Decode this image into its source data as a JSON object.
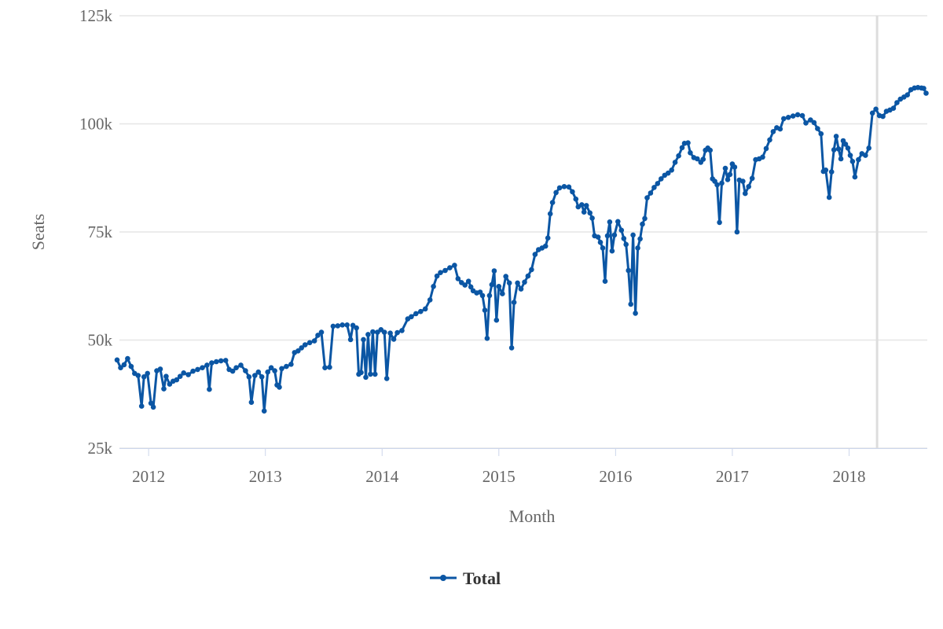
{
  "chart_data": {
    "type": "line",
    "title": "",
    "xlabel": "Month",
    "ylabel": "Seats",
    "xlim": [
      2011.75,
      2018.67
    ],
    "ylim": [
      25000,
      125000
    ],
    "yticks": [
      25000,
      50000,
      75000,
      100000,
      125000
    ],
    "ytick_labels": [
      "25k",
      "50k",
      "75k",
      "100k",
      "125k"
    ],
    "xticks": [
      2012,
      2013,
      2014,
      2015,
      2016,
      2017,
      2018
    ],
    "xtick_labels": [
      "2012",
      "2013",
      "2014",
      "2015",
      "2016",
      "2017",
      "2018"
    ],
    "grid": "horizontal",
    "legend_position": "bottom-center",
    "highlight_x": 2018.24,
    "colors": {
      "series": "#0b56a4",
      "grid": "#e6e6e6",
      "highlight": "#dddddd",
      "axis": "#ccd6eb"
    },
    "series": [
      {
        "name": "Total",
        "points": [
          [
            2011.73,
            45400
          ],
          [
            2011.76,
            43600
          ],
          [
            2011.79,
            44300
          ],
          [
            2011.82,
            45700
          ],
          [
            2011.85,
            43900
          ],
          [
            2011.88,
            42300
          ],
          [
            2011.91,
            41800
          ],
          [
            2011.94,
            34700
          ],
          [
            2011.96,
            41500
          ],
          [
            2011.99,
            42300
          ],
          [
            2012.02,
            35400
          ],
          [
            2012.04,
            34500
          ],
          [
            2012.07,
            42900
          ],
          [
            2012.1,
            43300
          ],
          [
            2012.13,
            38700
          ],
          [
            2012.15,
            41600
          ],
          [
            2012.18,
            39800
          ],
          [
            2012.21,
            40500
          ],
          [
            2012.24,
            40800
          ],
          [
            2012.27,
            41600
          ],
          [
            2012.3,
            42400
          ],
          [
            2012.34,
            42000
          ],
          [
            2012.38,
            42800
          ],
          [
            2012.42,
            43200
          ],
          [
            2012.46,
            43600
          ],
          [
            2012.5,
            44200
          ],
          [
            2012.52,
            38600
          ],
          [
            2012.54,
            44700
          ],
          [
            2012.58,
            45000
          ],
          [
            2012.62,
            45200
          ],
          [
            2012.66,
            45300
          ],
          [
            2012.69,
            43200
          ],
          [
            2012.72,
            42800
          ],
          [
            2012.75,
            43600
          ],
          [
            2012.79,
            44200
          ],
          [
            2012.83,
            42900
          ],
          [
            2012.86,
            41500
          ],
          [
            2012.88,
            35600
          ],
          [
            2012.91,
            41800
          ],
          [
            2012.94,
            42600
          ],
          [
            2012.97,
            41500
          ],
          [
            2012.99,
            33600
          ],
          [
            2013.02,
            42600
          ],
          [
            2013.05,
            43600
          ],
          [
            2013.08,
            42900
          ],
          [
            2013.1,
            39600
          ],
          [
            2013.12,
            39100
          ],
          [
            2013.14,
            43400
          ],
          [
            2013.18,
            43900
          ],
          [
            2013.22,
            44400
          ],
          [
            2013.25,
            47100
          ],
          [
            2013.28,
            47500
          ],
          [
            2013.31,
            48200
          ],
          [
            2013.34,
            48900
          ],
          [
            2013.38,
            49400
          ],
          [
            2013.42,
            49800
          ],
          [
            2013.45,
            51100
          ],
          [
            2013.48,
            51800
          ],
          [
            2013.51,
            43600
          ],
          [
            2013.55,
            43700
          ],
          [
            2013.58,
            53200
          ],
          [
            2013.62,
            53300
          ],
          [
            2013.66,
            53500
          ],
          [
            2013.7,
            53500
          ],
          [
            2013.73,
            50100
          ],
          [
            2013.75,
            53400
          ],
          [
            2013.78,
            52800
          ],
          [
            2013.8,
            42100
          ],
          [
            2013.82,
            42500
          ],
          [
            2013.84,
            50100
          ],
          [
            2013.86,
            41400
          ],
          [
            2013.88,
            51300
          ],
          [
            2013.9,
            42100
          ],
          [
            2013.92,
            51900
          ],
          [
            2013.94,
            42100
          ],
          [
            2013.96,
            51800
          ],
          [
            2013.99,
            52400
          ],
          [
            2014.02,
            51800
          ],
          [
            2014.04,
            41100
          ],
          [
            2014.07,
            51600
          ],
          [
            2014.1,
            50200
          ],
          [
            2014.13,
            51700
          ],
          [
            2014.17,
            52200
          ],
          [
            2014.22,
            54900
          ],
          [
            2014.25,
            55400
          ],
          [
            2014.29,
            56100
          ],
          [
            2014.33,
            56600
          ],
          [
            2014.37,
            57200
          ],
          [
            2014.41,
            59300
          ],
          [
            2014.44,
            62400
          ],
          [
            2014.47,
            64800
          ],
          [
            2014.5,
            65600
          ],
          [
            2014.54,
            66100
          ],
          [
            2014.58,
            66700
          ],
          [
            2014.62,
            67300
          ],
          [
            2014.65,
            64200
          ],
          [
            2014.68,
            63300
          ],
          [
            2014.71,
            62700
          ],
          [
            2014.74,
            63600
          ],
          [
            2014.76,
            62300
          ],
          [
            2014.78,
            61400
          ],
          [
            2014.81,
            60900
          ],
          [
            2014.84,
            61100
          ],
          [
            2014.86,
            60300
          ],
          [
            2014.88,
            56900
          ],
          [
            2014.9,
            50400
          ],
          [
            2014.92,
            60300
          ],
          [
            2014.94,
            62800
          ],
          [
            2014.96,
            66000
          ],
          [
            2014.98,
            54600
          ],
          [
            2015.0,
            62400
          ],
          [
            2015.03,
            60700
          ],
          [
            2015.06,
            64700
          ],
          [
            2015.09,
            63200
          ],
          [
            2015.11,
            48200
          ],
          [
            2015.13,
            58700
          ],
          [
            2015.16,
            63200
          ],
          [
            2015.19,
            61800
          ],
          [
            2015.22,
            63400
          ],
          [
            2015.25,
            64800
          ],
          [
            2015.28,
            66300
          ],
          [
            2015.31,
            69800
          ],
          [
            2015.34,
            70900
          ],
          [
            2015.37,
            71300
          ],
          [
            2015.4,
            71700
          ],
          [
            2015.42,
            73600
          ],
          [
            2015.44,
            79200
          ],
          [
            2015.46,
            81800
          ],
          [
            2015.49,
            84100
          ],
          [
            2015.52,
            85200
          ],
          [
            2015.56,
            85500
          ],
          [
            2015.6,
            85400
          ],
          [
            2015.63,
            84300
          ],
          [
            2015.66,
            82600
          ],
          [
            2015.68,
            80800
          ],
          [
            2015.71,
            81300
          ],
          [
            2015.73,
            79600
          ],
          [
            2015.75,
            81100
          ],
          [
            2015.78,
            79400
          ],
          [
            2015.8,
            78200
          ],
          [
            2015.82,
            74100
          ],
          [
            2015.85,
            73800
          ],
          [
            2015.87,
            72600
          ],
          [
            2015.89,
            71300
          ],
          [
            2015.91,
            63600
          ],
          [
            2015.93,
            74100
          ],
          [
            2015.95,
            77300
          ],
          [
            2015.97,
            70600
          ],
          [
            2015.99,
            74300
          ],
          [
            2016.02,
            77400
          ],
          [
            2016.05,
            75400
          ],
          [
            2016.07,
            73500
          ],
          [
            2016.09,
            72100
          ],
          [
            2016.11,
            66100
          ],
          [
            2016.13,
            58300
          ],
          [
            2016.15,
            74300
          ],
          [
            2016.17,
            56200
          ],
          [
            2016.19,
            71300
          ],
          [
            2016.21,
            73400
          ],
          [
            2016.23,
            76800
          ],
          [
            2016.25,
            78100
          ],
          [
            2016.27,
            82900
          ],
          [
            2016.3,
            84000
          ],
          [
            2016.33,
            85300
          ],
          [
            2016.36,
            86200
          ],
          [
            2016.39,
            87300
          ],
          [
            2016.42,
            88100
          ],
          [
            2016.45,
            88600
          ],
          [
            2016.48,
            89300
          ],
          [
            2016.51,
            91100
          ],
          [
            2016.54,
            92600
          ],
          [
            2016.57,
            94500
          ],
          [
            2016.59,
            95500
          ],
          [
            2016.62,
            95600
          ],
          [
            2016.64,
            93300
          ],
          [
            2016.67,
            92200
          ],
          [
            2016.7,
            91900
          ],
          [
            2016.73,
            91100
          ],
          [
            2016.75,
            91800
          ],
          [
            2016.77,
            93900
          ],
          [
            2016.79,
            94400
          ],
          [
            2016.81,
            93900
          ],
          [
            2016.83,
            87300
          ],
          [
            2016.85,
            86700
          ],
          [
            2016.87,
            85900
          ],
          [
            2016.89,
            77200
          ],
          [
            2016.91,
            86300
          ],
          [
            2016.94,
            89700
          ],
          [
            2016.96,
            87100
          ],
          [
            2016.98,
            88300
          ],
          [
            2017.0,
            90700
          ],
          [
            2017.02,
            90000
          ],
          [
            2017.04,
            75000
          ],
          [
            2017.06,
            87000
          ],
          [
            2017.09,
            86700
          ],
          [
            2017.11,
            83900
          ],
          [
            2017.14,
            85500
          ],
          [
            2017.17,
            87400
          ],
          [
            2017.2,
            91700
          ],
          [
            2017.23,
            91900
          ],
          [
            2017.26,
            92300
          ],
          [
            2017.29,
            94300
          ],
          [
            2017.32,
            96300
          ],
          [
            2017.35,
            98200
          ],
          [
            2017.38,
            99100
          ],
          [
            2017.41,
            98800
          ],
          [
            2017.44,
            101200
          ],
          [
            2017.48,
            101500
          ],
          [
            2017.52,
            101800
          ],
          [
            2017.56,
            102100
          ],
          [
            2017.6,
            101900
          ],
          [
            2017.63,
            100200
          ],
          [
            2017.67,
            100900
          ],
          [
            2017.7,
            100300
          ],
          [
            2017.73,
            98900
          ],
          [
            2017.76,
            97700
          ],
          [
            2017.78,
            89000
          ],
          [
            2017.8,
            89300
          ],
          [
            2017.83,
            83000
          ],
          [
            2017.85,
            88900
          ],
          [
            2017.87,
            94000
          ],
          [
            2017.89,
            97100
          ],
          [
            2017.91,
            94200
          ],
          [
            2017.93,
            91900
          ],
          [
            2017.95,
            96100
          ],
          [
            2017.97,
            95300
          ],
          [
            2017.99,
            94400
          ],
          [
            2018.01,
            92700
          ],
          [
            2018.03,
            91300
          ],
          [
            2018.05,
            87700
          ],
          [
            2018.08,
            91700
          ],
          [
            2018.11,
            93100
          ],
          [
            2018.14,
            92700
          ],
          [
            2018.17,
            94400
          ],
          [
            2018.2,
            102500
          ],
          [
            2018.23,
            103400
          ],
          [
            2018.26,
            101900
          ],
          [
            2018.29,
            101700
          ],
          [
            2018.32,
            102900
          ],
          [
            2018.35,
            103200
          ],
          [
            2018.38,
            103600
          ],
          [
            2018.41,
            104900
          ],
          [
            2018.44,
            105700
          ],
          [
            2018.47,
            106200
          ],
          [
            2018.5,
            106700
          ],
          [
            2018.53,
            107900
          ],
          [
            2018.56,
            108300
          ],
          [
            2018.59,
            108400
          ],
          [
            2018.62,
            108300
          ],
          [
            2018.64,
            108200
          ],
          [
            2018.66,
            107100
          ]
        ]
      }
    ]
  }
}
